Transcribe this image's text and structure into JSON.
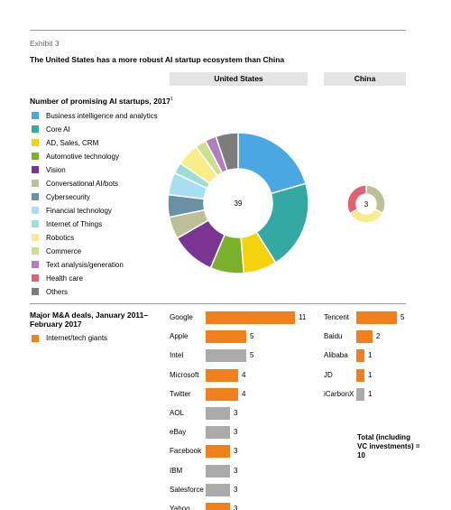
{
  "exhibit": "Exhibit 3",
  "title": "The United States has a more robust AI startup ecosystem than China",
  "columns": {
    "us": "United States",
    "china": "China"
  },
  "colors": {
    "internet_giant": "#f07f1c",
    "other": "#aaaaaa"
  },
  "chart_data": [
    {
      "type": "pie",
      "title": "Number of promising AI startups, 2017",
      "title_note": "1",
      "legend": [
        {
          "label": "Business intelligence and analytics",
          "color": "#4aa7e4"
        },
        {
          "label": "Core AI",
          "color": "#34a9a3"
        },
        {
          "label": "AD, Sales, CRM",
          "color": "#f4d30d"
        },
        {
          "label": "Automotive technology",
          "color": "#7ab02a"
        },
        {
          "label": "Vision",
          "color": "#7a3592"
        },
        {
          "label": "Conversational AI/bots",
          "color": "#bdbf98"
        },
        {
          "label": "Cybersecurity",
          "color": "#6b8fa3"
        },
        {
          "label": "Financial technology",
          "color": "#a6def2"
        },
        {
          "label": "Internet of Things",
          "color": "#9fdcd6"
        },
        {
          "label": "Robotics",
          "color": "#f8ed8a"
        },
        {
          "label": "Commerce",
          "color": "#cce08e"
        },
        {
          "label": "Text analysis/generation",
          "color": "#b07ec1"
        },
        {
          "label": "Health care",
          "color": "#e06074"
        },
        {
          "label": "Others",
          "color": "#7c7c7c"
        }
      ],
      "us": {
        "total": "39",
        "values": [
          8,
          8,
          3,
          3,
          4,
          2,
          2,
          2,
          1,
          2,
          1,
          1,
          0,
          2
        ]
      },
      "china": {
        "total": "3",
        "values": [
          0,
          0,
          0,
          0,
          0,
          1,
          0,
          0,
          0,
          1,
          0,
          0,
          1,
          0
        ]
      }
    },
    {
      "type": "bar",
      "title": "Major M&A deals, January 2011–February 2017",
      "legend": [
        {
          "label": "Internet/tech giants",
          "color": "#f07f1c"
        }
      ],
      "us": [
        {
          "name": "Google",
          "value": 11,
          "giant": true
        },
        {
          "name": "Apple",
          "value": 5,
          "giant": true
        },
        {
          "name": "Intel",
          "value": 5,
          "giant": false
        },
        {
          "name": "Microsoft",
          "value": 4,
          "giant": true
        },
        {
          "name": "Twitter",
          "value": 4,
          "giant": true
        },
        {
          "name": "AOL",
          "value": 3,
          "giant": false
        },
        {
          "name": "eBay",
          "value": 3,
          "giant": false
        },
        {
          "name": "Facebook",
          "value": 3,
          "giant": true
        },
        {
          "name": "IBM",
          "value": 3,
          "giant": false
        },
        {
          "name": "Salesforce",
          "value": 3,
          "giant": false
        },
        {
          "name": "Yahoo",
          "value": 3,
          "giant": true
        }
      ],
      "china": [
        {
          "name": "Tencent",
          "value": 5,
          "giant": true
        },
        {
          "name": "Baidu",
          "value": 2,
          "giant": true
        },
        {
          "name": "Alibaba",
          "value": 1,
          "giant": true
        },
        {
          "name": "JD",
          "value": 1,
          "giant": true
        },
        {
          "name": "iCarbonX",
          "value": 1,
          "giant": false
        }
      ],
      "china_total": "Total (including VC investments) = 10"
    }
  ]
}
